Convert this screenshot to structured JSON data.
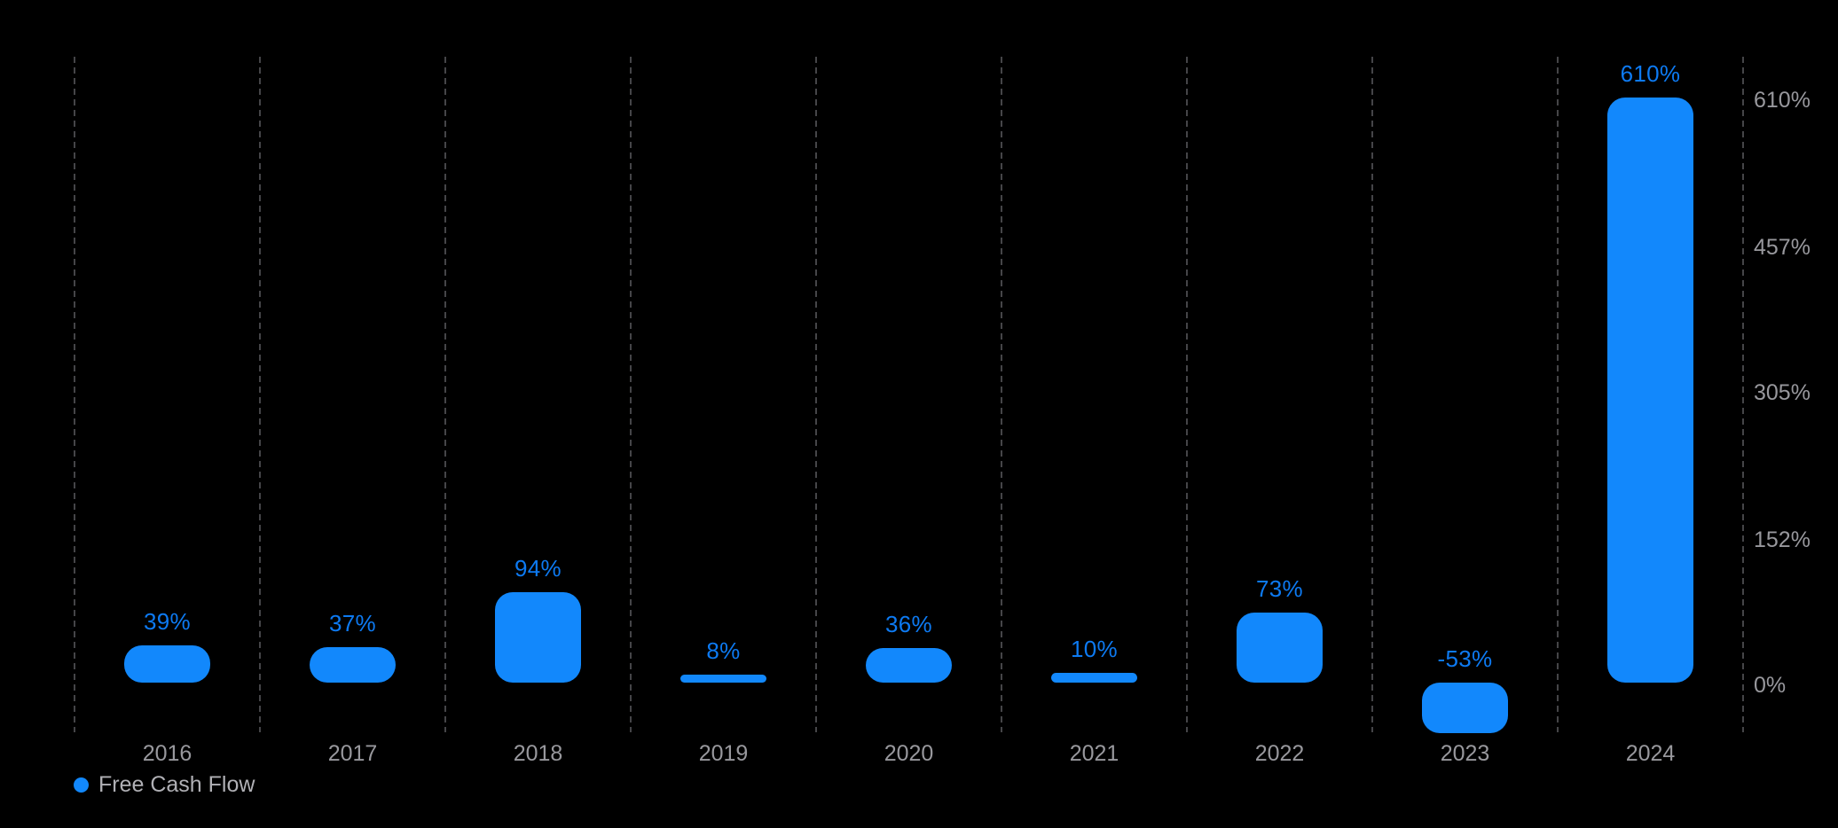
{
  "chart_data": {
    "type": "bar",
    "title": "",
    "categories": [
      "2016",
      "2017",
      "2018",
      "2019",
      "2020",
      "2021",
      "2022",
      "2023",
      "2024"
    ],
    "series": [
      {
        "name": "Free Cash Flow",
        "values": [
          39,
          37,
          94,
          8,
          36,
          10,
          73,
          -53,
          610
        ]
      }
    ],
    "value_labels": [
      "39%",
      "37%",
      "94%",
      "8%",
      "36%",
      "10%",
      "73%",
      "-53%",
      "610%"
    ],
    "y_ticks": [
      {
        "value": 610,
        "label": "610%"
      },
      {
        "value": 457,
        "label": "457%"
      },
      {
        "value": 305,
        "label": "305%"
      },
      {
        "value": 152,
        "label": "152%"
      },
      {
        "value": 0,
        "label": "0%"
      }
    ],
    "ylim": [
      -53,
      610
    ],
    "grid": "vertical-dashed-column-separators",
    "legend_position": "bottom-left",
    "legend": [
      "Free Cash Flow"
    ],
    "colors": {
      "background": "#000000",
      "bar": "#1288fc",
      "value_label": "#0d7af2",
      "axis_text": "#98989d",
      "year_text": "#98989d",
      "legend_text": "#b0b0b5",
      "gridline": "#454548"
    }
  }
}
